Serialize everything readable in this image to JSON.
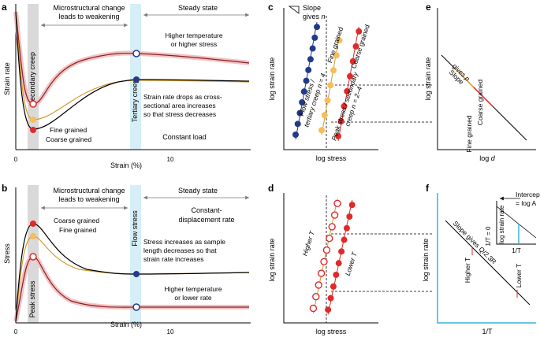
{
  "colors": {
    "red": "#e02a2a",
    "salmon": "#e8767a",
    "gold": "#d39a2e",
    "navy": "#223a8a",
    "light_orange": "#f6bd5a",
    "cyan": "#3bb0d8",
    "gray_band": "#d9d9d9",
    "blue_band": "#d6eef8"
  },
  "panel_labels": [
    "a",
    "b",
    "c",
    "d",
    "e",
    "f"
  ],
  "chart_data": [
    {
      "id": "a",
      "type": "line",
      "ylabel": "Strain rate",
      "xlabel": "Strain (%)",
      "x_ticks": [
        "0",
        "10"
      ],
      "bands": {
        "left": "Secondary creep",
        "right": "Tertiary creep"
      },
      "header": {
        "left": "Microstructural change leads to weakening",
        "right": "Steady state"
      },
      "header_lines": [
        "Microstructural change",
        "leads to weakening"
      ],
      "series": [
        {
          "name": "Higher temperature or higher stress",
          "label_lines": [
            "Higher temperature",
            "or higher stress"
          ]
        },
        {
          "name": "Fine grained"
        },
        {
          "name": "Coarse grained"
        }
      ],
      "annotation_lines": [
        "Strain rate drops as cross-",
        "sectional area increases",
        "so that stress decreases"
      ],
      "condition": "Constant load"
    },
    {
      "id": "b",
      "type": "line",
      "ylabel": "Stress",
      "xlabel": "Strain (%)",
      "x_ticks": [
        "0",
        "10"
      ],
      "bands": {
        "left": "Peak stress",
        "right": "Flow stress"
      },
      "header": {
        "left": "Microstructural change leads to weakening",
        "right": "Steady state"
      },
      "header_lines": [
        "Microstructural change",
        "leads to weakening"
      ],
      "series": [
        {
          "name": "Coarse grained"
        },
        {
          "name": "Fine grained"
        },
        {
          "name": "Higher temperature or lower rate",
          "label_lines": [
            "Higher temperature",
            "or lower rate"
          ]
        }
      ],
      "annotation_lines": [
        "Stress increases as sample",
        "length decreases so that",
        "strain rate increases"
      ],
      "condition_lines": [
        "Constant-",
        "displacement rate"
      ]
    },
    {
      "id": "c",
      "type": "scatter",
      "xlabel": "log stress",
      "ylabel": "log strain rate",
      "legend_lines": [
        "Slope",
        "gives n"
      ],
      "series": [
        {
          "name": "Flow stress / tertiary creep n = 4",
          "label_lines": [
            "Flow stress /",
            "tertiary creep n = 4"
          ],
          "points": [
            [
              1.0,
              1.0
            ],
            [
              1.18,
              1.72
            ],
            [
              1.36,
              2.44
            ],
            [
              1.54,
              3.16
            ],
            [
              1.72,
              3.88
            ],
            [
              1.9,
              4.6
            ],
            [
              2.08,
              5.32
            ],
            [
              2.26,
              6.04
            ],
            [
              2.44,
              6.76
            ],
            [
              2.62,
              7.48
            ],
            [
              2.8,
              8.2
            ]
          ]
        },
        {
          "name": "Fine grained",
          "points": [
            [
              3.2,
              1.3
            ],
            [
              3.45,
              2.3
            ],
            [
              3.7,
              3.3
            ],
            [
              3.95,
              4.3
            ],
            [
              4.2,
              5.3
            ],
            [
              4.45,
              6.3
            ],
            [
              4.7,
              7.3
            ]
          ]
        },
        {
          "name": "Coarse grained",
          "points": [
            [
              4.6,
              0.9
            ],
            [
              4.85,
              1.9
            ],
            [
              5.1,
              2.9
            ],
            [
              5.35,
              3.9
            ],
            [
              5.6,
              4.9
            ],
            [
              5.85,
              5.9
            ],
            [
              6.1,
              6.9
            ],
            [
              6.35,
              7.9
            ]
          ]
        },
        {
          "name": "Peak stress / secondary creep n = 2–4",
          "label_lines": [
            "Peak stress / secondary",
            "creep n = 2–4"
          ]
        }
      ]
    },
    {
      "id": "d",
      "type": "scatter",
      "xlabel": "log stress",
      "ylabel": "log strain rate",
      "series": [
        {
          "name": "Higher T",
          "marker": "open",
          "points": [
            [
              2.2,
              1.0
            ],
            [
              2.4,
              1.8
            ],
            [
              2.6,
              2.6
            ],
            [
              2.8,
              3.4
            ],
            [
              3.0,
              4.2
            ],
            [
              3.2,
              5.0
            ],
            [
              3.4,
              5.8
            ],
            [
              3.6,
              6.6
            ],
            [
              3.8,
              7.4
            ],
            [
              4.0,
              8.2
            ]
          ]
        },
        {
          "name": "Lower T",
          "marker": "filled",
          "points": [
            [
              3.3,
              0.9
            ],
            [
              3.5,
              1.7
            ],
            [
              3.7,
              2.5
            ],
            [
              3.9,
              3.3
            ],
            [
              4.1,
              4.1
            ],
            [
              4.3,
              4.9
            ],
            [
              4.5,
              5.7
            ],
            [
              4.7,
              6.5
            ],
            [
              4.9,
              7.3
            ],
            [
              5.1,
              8.1
            ]
          ]
        }
      ]
    },
    {
      "id": "e",
      "type": "line",
      "xlabel": "log d",
      "ylabel": "log strain rate",
      "slope_lines": [
        "Slope",
        "gives p"
      ],
      "series": [
        {
          "name": "Fine grained"
        },
        {
          "name": "Coarse grained"
        }
      ]
    },
    {
      "id": "f",
      "type": "line",
      "xlabel": "1/T",
      "ylabel": "log strain rate",
      "slope_label": "Slope gives Q/2.3R",
      "series": [
        {
          "name": "Higher T"
        },
        {
          "name": "Lower T"
        }
      ],
      "inset": {
        "lines": [
          "Intercept",
          "= log A"
        ],
        "xlabel": "1/T",
        "ylabel": "log strain rate",
        "y_axis_label": "1/T = 0"
      }
    }
  ]
}
